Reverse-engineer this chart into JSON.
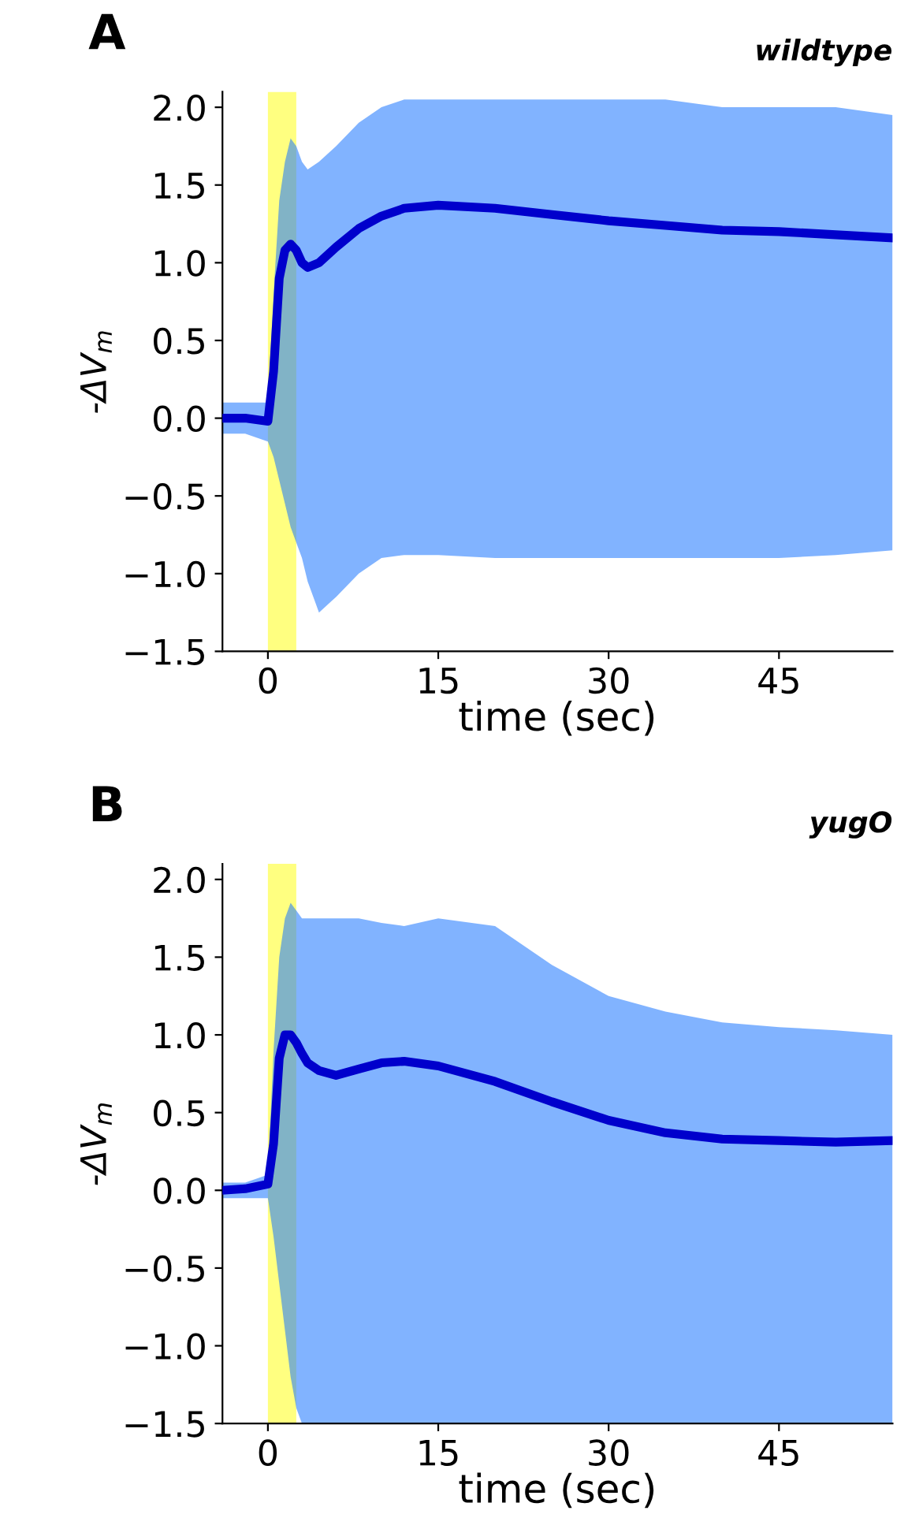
{
  "chart_data": [
    {
      "type": "line",
      "title": "A",
      "subtitle": "wildtype",
      "xlabel": "time (sec)",
      "ylabel": "-ΔV$_{m}$",
      "x": [
        -4,
        -2,
        0,
        0.5,
        1,
        1.5,
        2,
        2.5,
        3,
        3.5,
        4.5,
        6,
        8,
        10,
        12,
        15,
        20,
        25,
        30,
        35,
        40,
        45,
        50,
        55
      ],
      "series": [
        {
          "color": "#0000cc",
          "values": [
            0,
            0,
            -0.02,
            0.3,
            0.9,
            1.08,
            1.12,
            1.08,
            1.0,
            0.97,
            1.0,
            1.1,
            1.22,
            1.3,
            1.35,
            1.37,
            1.35,
            1.31,
            1.27,
            1.24,
            1.21,
            1.2,
            1.18,
            1.16
          ],
          "upper": [
            0.1,
            0.1,
            0.1,
            0.8,
            1.4,
            1.65,
            1.8,
            1.75,
            1.65,
            1.6,
            1.65,
            1.75,
            1.9,
            2.0,
            2.05,
            2.05,
            2.05,
            2.05,
            2.05,
            2.05,
            2.0,
            2.0,
            2.0,
            1.95
          ],
          "lower": [
            -0.1,
            -0.1,
            -0.15,
            -0.25,
            -0.4,
            -0.55,
            -0.7,
            -0.8,
            -0.9,
            -1.05,
            -1.25,
            -1.15,
            -1.0,
            -0.9,
            -0.88,
            -0.88,
            -0.9,
            -0.9,
            -0.9,
            -0.9,
            -0.9,
            -0.9,
            -0.88,
            -0.85
          ]
        }
      ],
      "bands": [
        {
          "axis": "x",
          "from": 0,
          "to": 2.5,
          "color": "#ffff80"
        }
      ],
      "xlim": [
        -4,
        55
      ],
      "xticks": [
        0,
        15,
        30,
        45
      ],
      "ylim": [
        -1.5,
        2.1
      ],
      "yticks": [
        {
          "value": -1.5,
          "label": "−1.5"
        },
        {
          "value": -1.0,
          "label": "−1.0"
        },
        {
          "value": -0.5,
          "label": "−0.5"
        },
        {
          "value": 0,
          "label": "0.0"
        },
        {
          "value": 0.5,
          "label": "0.5"
        },
        {
          "value": 1.0,
          "label": "1.0"
        },
        {
          "value": 1.5,
          "label": "1.5"
        },
        {
          "value": 2.0,
          "label": "2.0"
        }
      ],
      "grid": false,
      "legend": false,
      "marker": "none",
      "line_style": "solid"
    },
    {
      "type": "line",
      "title": "B",
      "subtitle": "yugO",
      "xlabel": "time (sec)",
      "ylabel": "-ΔV$_{m}$",
      "x": [
        -4,
        -2,
        0,
        0.5,
        1,
        1.5,
        2,
        2.5,
        3,
        3.5,
        4.5,
        6,
        8,
        10,
        12,
        15,
        20,
        25,
        30,
        35,
        40,
        45,
        50,
        55
      ],
      "series": [
        {
          "color": "#0000cc",
          "values": [
            0,
            0.01,
            0.04,
            0.3,
            0.85,
            1.0,
            1.0,
            0.95,
            0.88,
            0.82,
            0.77,
            0.74,
            0.78,
            0.82,
            0.83,
            0.8,
            0.7,
            0.57,
            0.45,
            0.37,
            0.33,
            0.32,
            0.31,
            0.32
          ],
          "upper": [
            0.05,
            0.05,
            0.1,
            0.9,
            1.5,
            1.75,
            1.85,
            1.8,
            1.75,
            1.75,
            1.75,
            1.75,
            1.75,
            1.72,
            1.7,
            1.75,
            1.7,
            1.45,
            1.25,
            1.15,
            1.08,
            1.05,
            1.03,
            1.0
          ],
          "lower": [
            -0.05,
            -0.05,
            -0.05,
            -0.3,
            -0.6,
            -0.9,
            -1.2,
            -1.4,
            -1.5,
            -1.5,
            -1.5,
            -1.5,
            -1.5,
            -1.5,
            -1.5,
            -1.5,
            -1.5,
            -1.5,
            -1.5,
            -1.5,
            -1.5,
            -1.5,
            -1.5,
            -1.5
          ]
        }
      ],
      "bands": [
        {
          "axis": "x",
          "from": 0,
          "to": 2.5,
          "color": "#ffff80"
        }
      ],
      "xlim": [
        -4,
        55
      ],
      "xticks": [
        0,
        15,
        30,
        45
      ],
      "ylim": [
        -1.5,
        2.1
      ],
      "yticks": [
        {
          "value": -1.5,
          "label": "−1.5"
        },
        {
          "value": -1.0,
          "label": "−1.0"
        },
        {
          "value": -0.5,
          "label": "−0.5"
        },
        {
          "value": 0,
          "label": "0.0"
        },
        {
          "value": 0.5,
          "label": "0.5"
        },
        {
          "value": 1.0,
          "label": "1.0"
        },
        {
          "value": 1.5,
          "label": "1.5"
        },
        {
          "value": 2.0,
          "label": "2.0"
        }
      ],
      "grid": false,
      "legend": false,
      "marker": "none",
      "line_style": "solid"
    }
  ]
}
